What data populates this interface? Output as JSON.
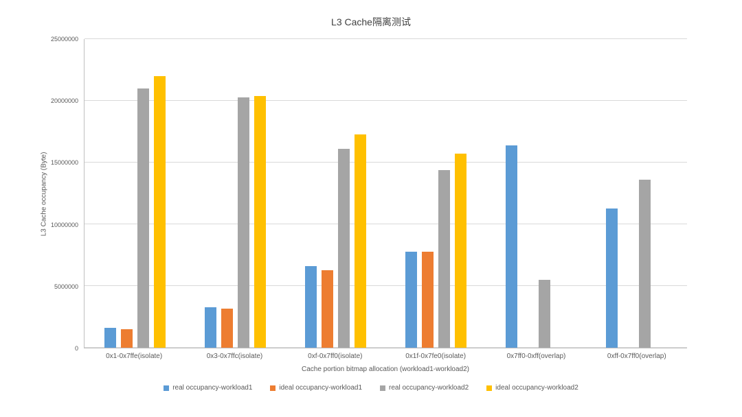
{
  "chart_data": {
    "type": "bar",
    "title": "L3 Cache隔离测试",
    "xlabel": "Cache portion bitmap allocation (workload1-workload2)",
    "ylabel": "L3 Cache occupancy (Byte)",
    "ylim": [
      0,
      25000000
    ],
    "yticks": [
      0,
      5000000,
      10000000,
      15000000,
      20000000,
      25000000
    ],
    "grid": true,
    "legend_position": "bottom",
    "categories": [
      "0x1-0x7ffe(isolate)",
      "0x3-0x7ffc(isolate)",
      "0xf-0x7ff0(isolate)",
      "0x1f-0x7fe0(isolate)",
      "0x7ff0-0xff(overlap)",
      "0xff-0x7ff0(overlap)"
    ],
    "series": [
      {
        "name": "real occupancy-workload1",
        "color": "#5B9BD5",
        "values": [
          1600000,
          3300000,
          6600000,
          7800000,
          16400000,
          11300000
        ]
      },
      {
        "name": "ideal occupancy-workload1",
        "color": "#ED7D31",
        "values": [
          1500000,
          3150000,
          6300000,
          7800000,
          0,
          0
        ]
      },
      {
        "name": "real occupancy-workload2",
        "color": "#A5A5A5",
        "values": [
          21000000,
          20300000,
          16100000,
          14400000,
          5500000,
          13600000
        ]
      },
      {
        "name": "ideal occupancy-workload2",
        "color": "#FFC000",
        "values": [
          22000000,
          20400000,
          17300000,
          15700000,
          0,
          0
        ]
      }
    ]
  }
}
